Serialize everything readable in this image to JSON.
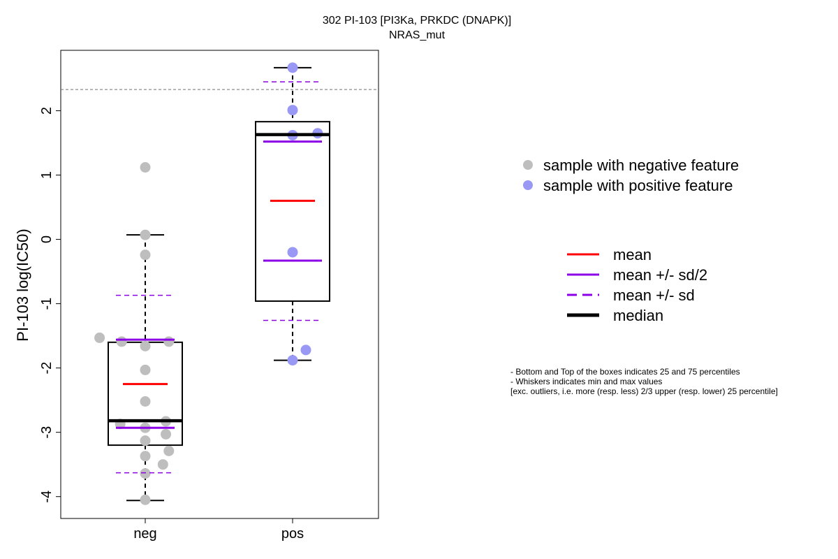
{
  "title": "302 PI-103 [PI3Ka, PRKDC (DNAPK)]",
  "subtitle": "NRAS_mut",
  "chart_data": {
    "type": "boxplot",
    "ylabel": "PI-103 log(IC50)",
    "xlabel": "",
    "ylim": [
      -4.34,
      2.94
    ],
    "yticks": [
      -4,
      -3,
      -2,
      -1,
      0,
      1,
      2
    ],
    "categories": [
      "neg",
      "pos"
    ],
    "threshold_line": 2.33,
    "groups": [
      {
        "name": "neg",
        "box": {
          "q1": -3.2,
          "median": -2.82,
          "q3": -1.6
        },
        "whisker": {
          "min": -4.06,
          "max": 0.07
        },
        "mean": -2.25,
        "mean_minus_half_sd": -2.93,
        "mean_plus_half_sd": -1.56,
        "mean_minus_sd": -3.63,
        "mean_plus_sd": -0.87,
        "points": [
          {
            "x": 1.0,
            "y": 1.12
          },
          {
            "x": 1.0,
            "y": 0.07
          },
          {
            "x": 1.0,
            "y": -0.24
          },
          {
            "x": 0.69,
            "y": -1.53
          },
          {
            "x": 0.84,
            "y": -1.59
          },
          {
            "x": 1.0,
            "y": -1.66
          },
          {
            "x": 1.16,
            "y": -1.59
          },
          {
            "x": 1.0,
            "y": -2.03
          },
          {
            "x": 1.0,
            "y": -2.52
          },
          {
            "x": 0.83,
            "y": -2.87
          },
          {
            "x": 1.0,
            "y": -2.93
          },
          {
            "x": 1.14,
            "y": -2.83
          },
          {
            "x": 1.14,
            "y": -3.03
          },
          {
            "x": 1.0,
            "y": -3.13
          },
          {
            "x": 1.16,
            "y": -3.29
          },
          {
            "x": 1.0,
            "y": -3.37
          },
          {
            "x": 1.12,
            "y": -3.5
          },
          {
            "x": 1.0,
            "y": -3.64
          },
          {
            "x": 1.0,
            "y": -4.05
          }
        ]
      },
      {
        "name": "pos",
        "box": {
          "q1": -0.96,
          "median": 1.63,
          "q3": 1.83
        },
        "whisker": {
          "min": -1.88,
          "max": 2.67
        },
        "mean": 0.6,
        "mean_minus_half_sd": -0.33,
        "mean_plus_half_sd": 1.52,
        "mean_minus_sd": -1.26,
        "mean_plus_sd": 2.45,
        "points": [
          {
            "x": 2.0,
            "y": 2.67
          },
          {
            "x": 2.0,
            "y": 2.01
          },
          {
            "x": 2.0,
            "y": 1.62
          },
          {
            "x": 2.17,
            "y": 1.65
          },
          {
            "x": 2.0,
            "y": -0.2
          },
          {
            "x": 2.09,
            "y": -1.72
          },
          {
            "x": 2.0,
            "y": -1.88
          }
        ]
      }
    ]
  },
  "legend_points": [
    {
      "label": "sample with negative feature",
      "color": "#bebebe"
    },
    {
      "label": "sample with positive feature",
      "color": "#9999f5"
    }
  ],
  "legend_lines": [
    {
      "label": "mean",
      "color": "#ff0000",
      "style": "solid"
    },
    {
      "label": "mean +/- sd/2",
      "color": "#8b00e6",
      "style": "solid"
    },
    {
      "label": "mean +/- sd",
      "color": "#8b00e6",
      "style": "dashed"
    },
    {
      "label": "median",
      "color": "#000000",
      "style": "thick"
    }
  ],
  "notes": [
    "- Bottom and Top of the boxes indicates 25 and 75 percentiles",
    "- Whiskers indicates min and max values",
    "[exc. outliers, i.e. more (resp. less) 2/3 upper (resp. lower) 25 percentile]"
  ],
  "colors": {
    "mean": "#ff0000",
    "sd": "#8b00e6",
    "median": "#000000",
    "threshold": "#707070"
  }
}
